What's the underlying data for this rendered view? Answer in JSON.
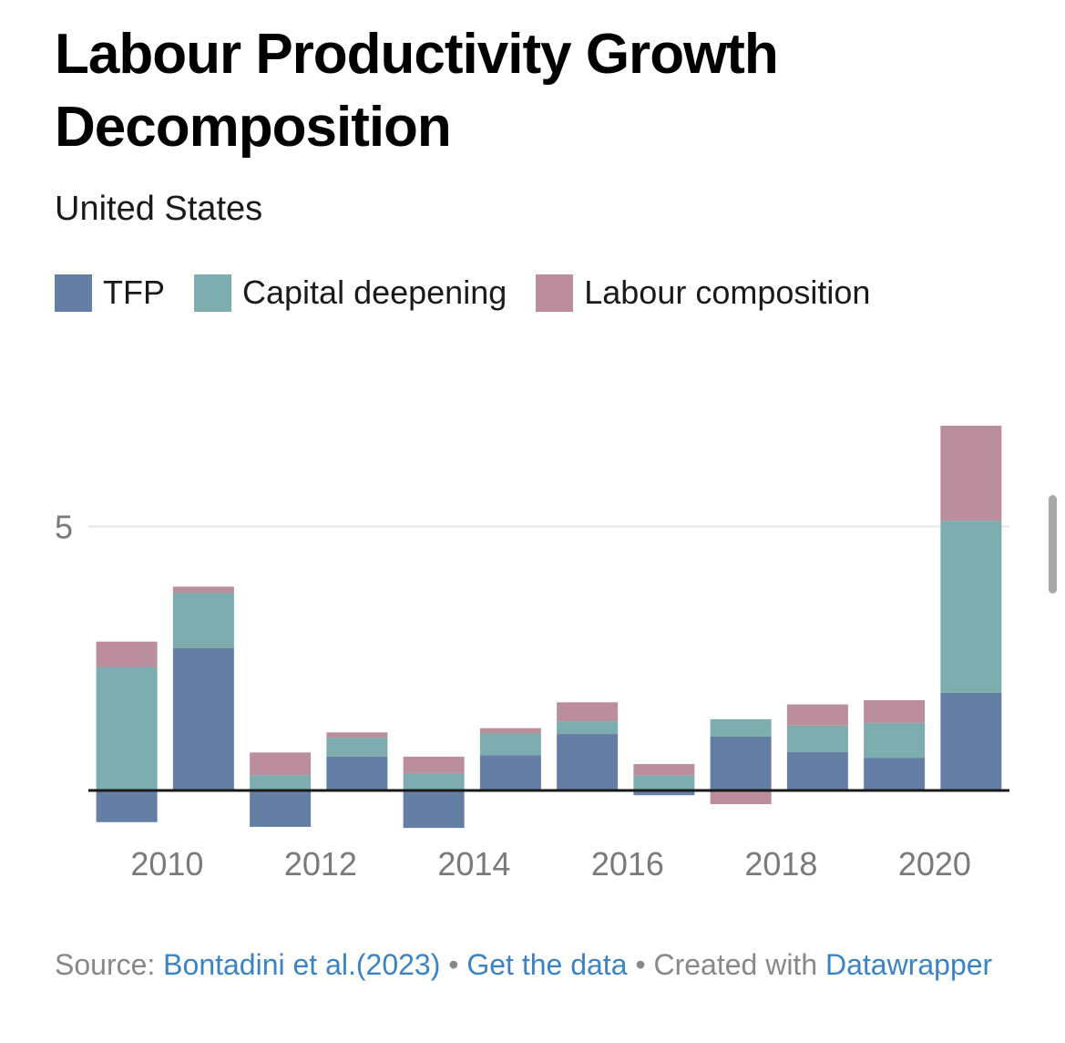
{
  "chart_data": {
    "type": "bar",
    "stacked": true,
    "title": "Labour Productivity Growth Decomposition",
    "subtitle": "United States",
    "xlabel": "",
    "ylabel": "",
    "ylim": [
      -1,
      7
    ],
    "yticks": [
      {
        "value": 5,
        "label": "5"
      }
    ],
    "grid": true,
    "legend_position": "top-left",
    "categories": [
      "2009",
      "2010",
      "2011",
      "2012",
      "2013",
      "2014",
      "2015",
      "2016",
      "2017",
      "2018",
      "2019",
      "2020"
    ],
    "xtick_labels": [
      {
        "category": "2010",
        "label": "2010"
      },
      {
        "category": "2012",
        "label": "2012"
      },
      {
        "category": "2014",
        "label": "2014"
      },
      {
        "category": "2016",
        "label": "2016"
      },
      {
        "category": "2018",
        "label": "2018"
      },
      {
        "category": "2020",
        "label": "2020"
      }
    ],
    "series": [
      {
        "name": "TFP",
        "color": "#647ea4",
        "values": [
          -0.6,
          2.7,
          -0.69,
          0.64,
          -0.71,
          0.67,
          1.07,
          -0.09,
          1.02,
          0.73,
          0.62,
          1.85
        ]
      },
      {
        "name": "Capital deepening",
        "color": "#7dadae",
        "values": [
          2.34,
          1.04,
          0.29,
          0.36,
          0.33,
          0.41,
          0.24,
          0.28,
          0.33,
          0.5,
          0.66,
          3.26
        ]
      },
      {
        "name": "Labour composition",
        "color": "#bb8e9e",
        "values": [
          0.48,
          0.12,
          0.43,
          0.1,
          0.31,
          0.1,
          0.36,
          0.22,
          -0.26,
          0.4,
          0.43,
          1.8
        ]
      }
    ]
  },
  "footer": {
    "source_label": "Source:",
    "source_link": "Bontadini et al.(2023)",
    "separator": "•",
    "get_data": "Get the data",
    "created_with": "Created with",
    "datawrapper": "Datawrapper"
  }
}
